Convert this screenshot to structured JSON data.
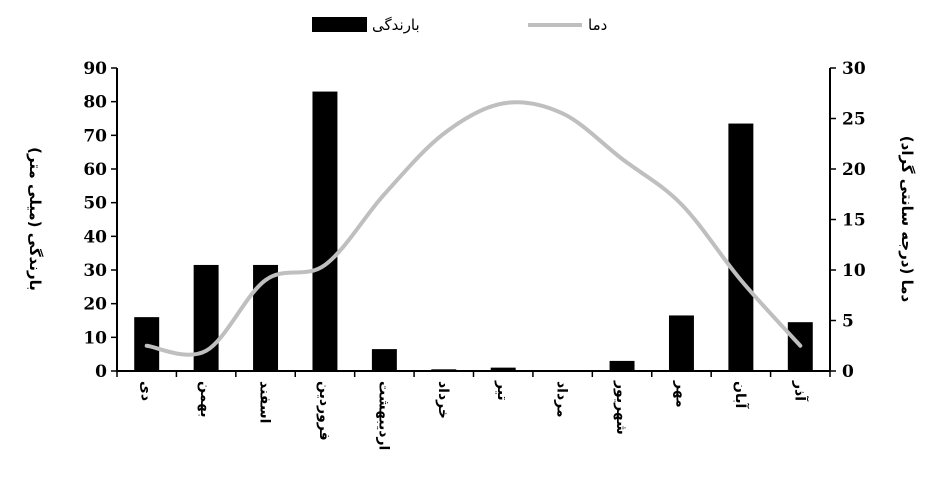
{
  "chart_data": {
    "type": "bar",
    "categories": [
      "دی",
      "بهمن",
      "اسفند",
      "فروردین",
      "اردیبهشت",
      "خرداد",
      "تیر",
      "مرداد",
      "شهریور",
      "مهر",
      "آبان",
      "آذر"
    ],
    "series": [
      {
        "name": "بارندگی",
        "type": "bar",
        "axis": "left",
        "color": "#000000",
        "values": [
          16,
          31.5,
          31.5,
          83,
          6.5,
          0.5,
          1,
          0,
          3,
          16.5,
          73.5,
          14.5
        ]
      },
      {
        "name": "دما",
        "type": "line",
        "axis": "right",
        "color": "#bfbfbf",
        "values": [
          2.5,
          2,
          9,
          10.5,
          17.5,
          23.5,
          26.5,
          25.5,
          21,
          16.5,
          9,
          2.5
        ]
      }
    ],
    "ylabel": "بارندگی (میلی متر)",
    "y2label": "دما (درجه سانتی گراد)",
    "ylim": [
      0,
      90
    ],
    "y2lim": [
      0,
      30
    ],
    "yticks": [
      "0",
      "10",
      "20",
      "30",
      "40",
      "50",
      "60",
      "70",
      "80",
      "90"
    ],
    "y2ticks": [
      "0",
      "5",
      "10",
      "15",
      "20",
      "25",
      "30"
    ],
    "legend_position": "top",
    "grid": false
  }
}
